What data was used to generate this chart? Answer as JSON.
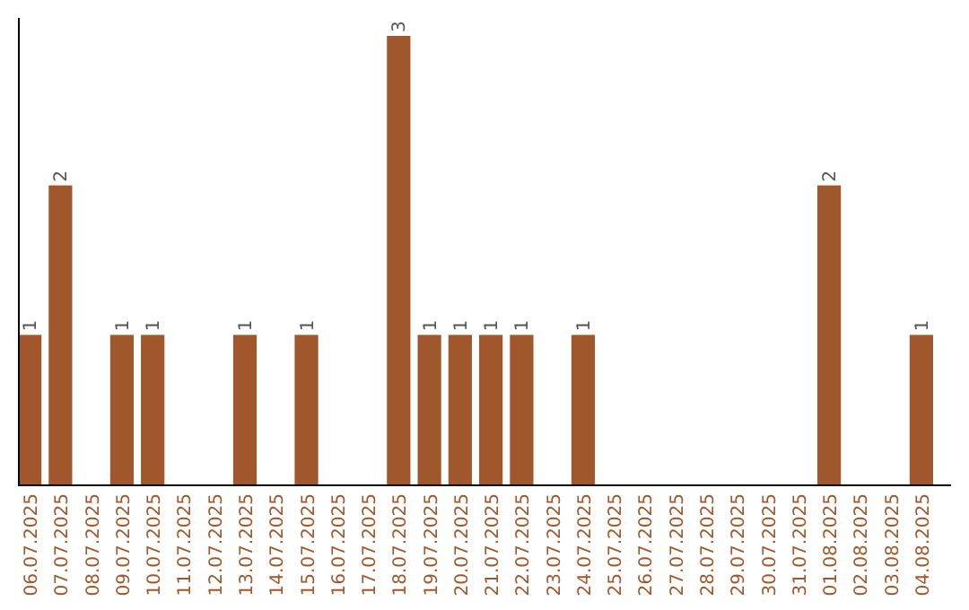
{
  "chart_data": {
    "type": "bar",
    "categories": [
      "06.07.2025",
      "07.07.2025",
      "08.07.2025",
      "09.07.2025",
      "10.07.2025",
      "11.07.2025",
      "12.07.2025",
      "13.07.2025",
      "14.07.2025",
      "15.07.2025",
      "16.07.2025",
      "17.07.2025",
      "18.07.2025",
      "19.07.2025",
      "20.07.2025",
      "21.07.2025",
      "22.07.2025",
      "23.07.2025",
      "24.07.2025",
      "25.07.2025",
      "26.07.2025",
      "27.07.2025",
      "28.07.2025",
      "29.07.2025",
      "30.07.2025",
      "31.07.2025",
      "01.08.2025",
      "02.08.2025",
      "03.08.2025",
      "04.08.2025"
    ],
    "values": [
      1,
      2,
      0,
      1,
      1,
      0,
      0,
      1,
      0,
      1,
      0,
      0,
      3,
      1,
      1,
      1,
      1,
      0,
      1,
      0,
      0,
      0,
      0,
      0,
      0,
      0,
      2,
      0,
      0,
      1
    ],
    "value_labels": [
      "1",
      "2",
      null,
      "1",
      "1",
      null,
      null,
      "1",
      null,
      "1",
      null,
      null,
      "3",
      "1",
      "1",
      "1",
      "1",
      null,
      "1",
      null,
      null,
      null,
      null,
      null,
      null,
      null,
      "2",
      null,
      null,
      "1"
    ],
    "color": "#a0572b",
    "tick_labels": "x"
  }
}
